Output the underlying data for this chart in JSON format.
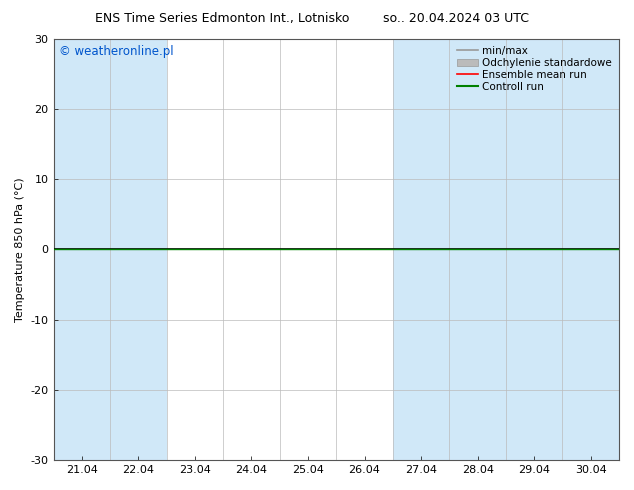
{
  "title_left": "ENS Time Series Edmonton Int., Lotnisko",
  "title_right": "so.. 20.04.2024 03 UTC",
  "ylabel": "Temperature 850 hPa (°C)",
  "ylim": [
    -30,
    30
  ],
  "yticks": [
    -30,
    -20,
    -10,
    0,
    10,
    20,
    30
  ],
  "xlim": [
    0,
    10
  ],
  "xtick_labels": [
    "21.04",
    "22.04",
    "23.04",
    "24.04",
    "25.04",
    "26.04",
    "27.04",
    "28.04",
    "29.04",
    "30.04"
  ],
  "xtick_positions": [
    0.5,
    1.5,
    2.5,
    3.5,
    4.5,
    5.5,
    6.5,
    7.5,
    8.5,
    9.5
  ],
  "shaded_bands": [
    0,
    1,
    6,
    7,
    8,
    9
  ],
  "band_color": "#d0e8f8",
  "plot_bg_color": "#ffffff",
  "fig_bg_color": "#ffffff",
  "zero_line_color": "#000000",
  "green_line_color": "#008000",
  "copyright_text": "© weatheronline.pl",
  "copyright_color": "#0055cc",
  "legend_items": [
    {
      "label": "min/max",
      "color": "#999999",
      "style": "line",
      "lw": 1.2
    },
    {
      "label": "Odchylenie standardowe",
      "color": "#bbbbbb",
      "style": "bar"
    },
    {
      "label": "Ensemble mean run",
      "color": "#ff0000",
      "style": "line",
      "lw": 1.2
    },
    {
      "label": "Controll run",
      "color": "#008000",
      "style": "line",
      "lw": 1.5
    }
  ],
  "title_fontsize": 9,
  "axis_fontsize": 8,
  "tick_fontsize": 8,
  "legend_fontsize": 7.5
}
